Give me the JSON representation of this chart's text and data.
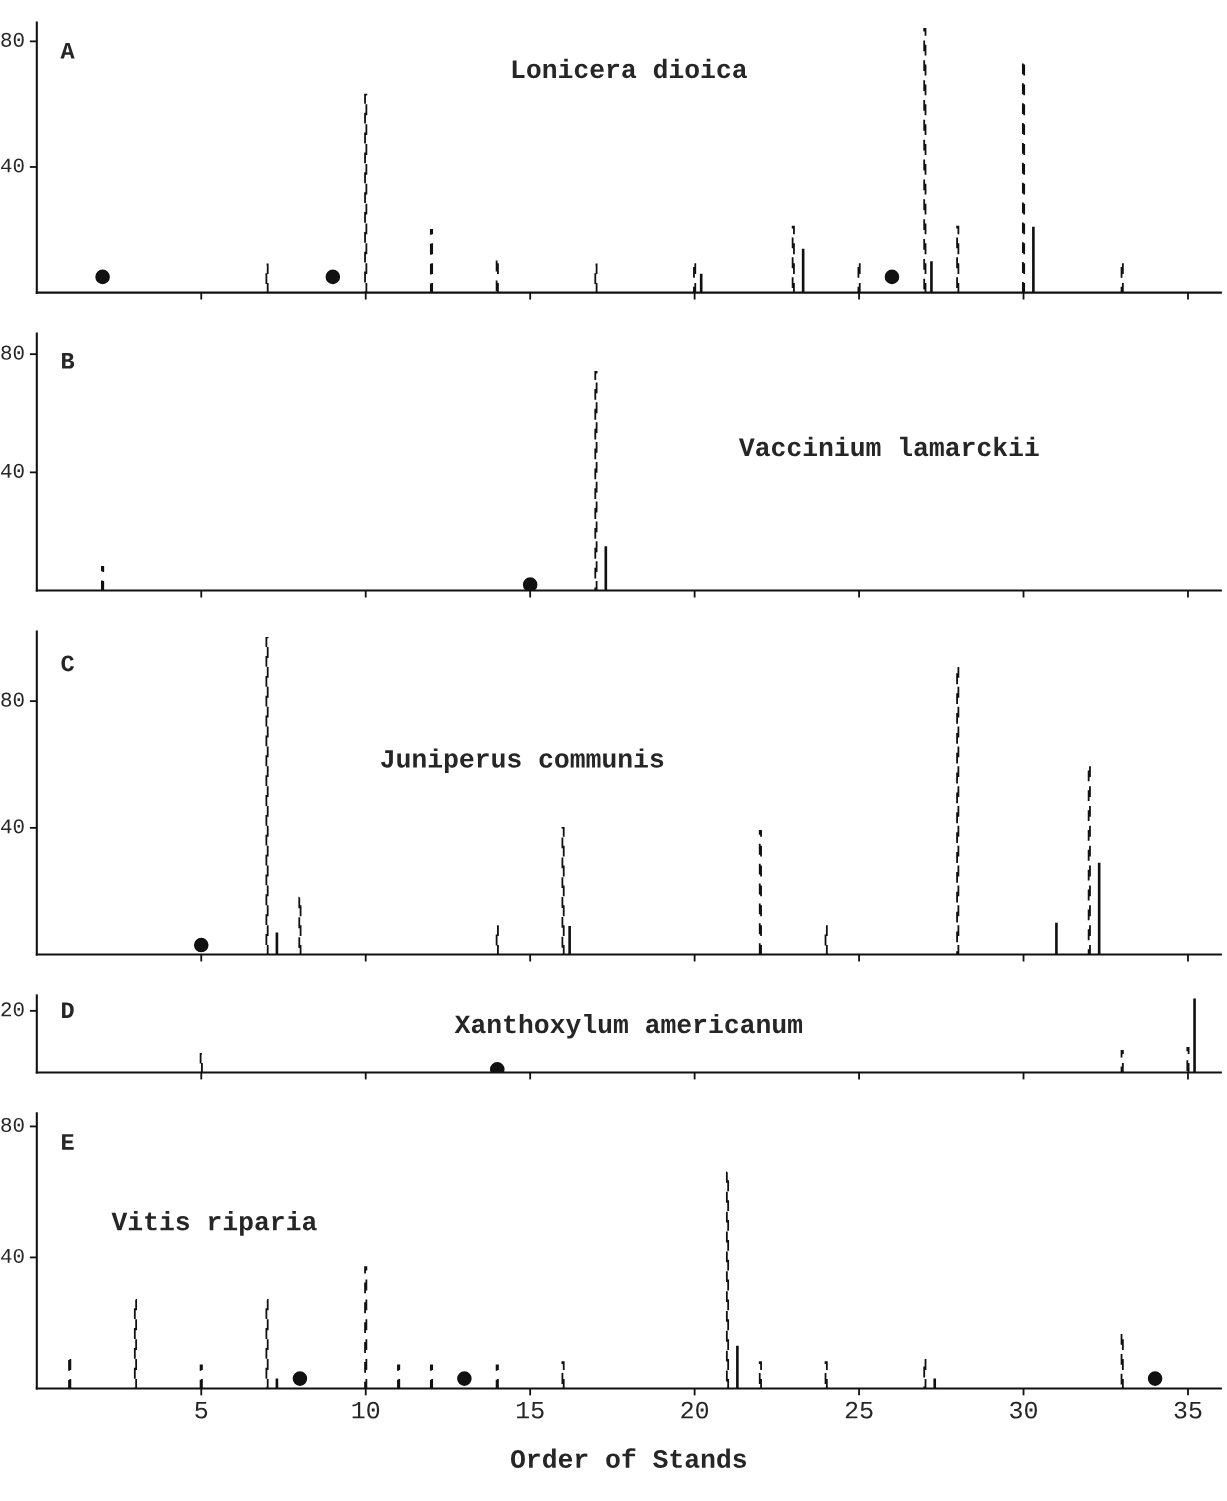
{
  "chart_data": [
    {
      "type": "bar",
      "title": "Lonicera dioica",
      "annotations": [
        "A"
      ],
      "xlim": [
        0,
        36
      ],
      "xticks": [
        {
          "value": 5,
          "label": null
        },
        {
          "value": 10,
          "label": null
        },
        {
          "value": 15,
          "label": null
        },
        {
          "value": 20,
          "label": null
        },
        {
          "value": 25,
          "label": null
        },
        {
          "value": 30,
          "label": null
        },
        {
          "value": 35,
          "label": null
        }
      ],
      "ylim": [
        0,
        86
      ],
      "yticks": [
        40,
        80
      ],
      "tick_labels": "y",
      "grid": false,
      "legend": false,
      "series": [
        {
          "line_style": "dashed",
          "color": "#111111",
          "x": [
            7,
            10,
            12,
            14,
            17,
            20,
            23,
            25,
            27,
            28,
            30,
            33
          ],
          "values": [
            9,
            63,
            20,
            11,
            9,
            10,
            21,
            10,
            84,
            21,
            74,
            10
          ]
        },
        {
          "line_style": "solid",
          "color": "#111111",
          "x": [
            20.2,
            23.3,
            27.2,
            30.3
          ],
          "values": [
            6,
            14,
            10,
            21
          ]
        },
        {
          "type": "scatter",
          "marker": "circle",
          "color": "#111111",
          "x": [
            2,
            9,
            26
          ],
          "values": [
            5,
            5,
            5
          ]
        }
      ]
    },
    {
      "type": "bar",
      "title": "Vaccinium lamarckii",
      "annotations": [
        "B"
      ],
      "xlim": [
        0,
        36
      ],
      "xticks": [
        {
          "value": 5,
          "label": null
        },
        {
          "value": 10,
          "label": null
        },
        {
          "value": 15,
          "label": null
        },
        {
          "value": 20,
          "label": null
        },
        {
          "value": 25,
          "label": null
        },
        {
          "value": 30,
          "label": null
        },
        {
          "value": 35,
          "label": null
        }
      ],
      "ylim": [
        0,
        87
      ],
      "yticks": [
        40,
        80
      ],
      "tick_labels": "y",
      "grid": false,
      "legend": false,
      "series": [
        {
          "line_style": "dashed",
          "color": "#111111",
          "x": [
            2,
            17
          ],
          "values": [
            8,
            74
          ]
        },
        {
          "line_style": "solid",
          "color": "#111111",
          "x": [
            17.3
          ],
          "values": [
            15
          ]
        },
        {
          "type": "scatter",
          "marker": "circle",
          "color": "#111111",
          "x": [
            15
          ],
          "values": [
            2
          ]
        }
      ]
    },
    {
      "type": "bar",
      "title": "Juniperus communis",
      "annotations": [
        "C"
      ],
      "xlim": [
        0,
        36
      ],
      "xticks": [
        {
          "value": 5,
          "label": null
        },
        {
          "value": 10,
          "label": null
        },
        {
          "value": 15,
          "label": null
        },
        {
          "value": 20,
          "label": null
        },
        {
          "value": 25,
          "label": null
        },
        {
          "value": 30,
          "label": null
        },
        {
          "value": 35,
          "label": null
        }
      ],
      "ylim": [
        0,
        102
      ],
      "yticks": [
        40,
        80
      ],
      "tick_labels": "y",
      "grid": false,
      "legend": false,
      "series": [
        {
          "line_style": "dashed",
          "color": "#111111",
          "x": [
            7,
            8,
            14,
            16,
            22,
            24,
            28,
            32
          ],
          "values": [
            100,
            18,
            9,
            40,
            39,
            9,
            91,
            60
          ]
        },
        {
          "line_style": "solid",
          "color": "#111111",
          "x": [
            7.3,
            16.2,
            31,
            32.3
          ],
          "values": [
            7,
            9,
            10,
            29
          ]
        },
        {
          "type": "scatter",
          "marker": "circle",
          "color": "#111111",
          "x": [
            5
          ],
          "values": [
            3
          ]
        }
      ]
    },
    {
      "type": "bar",
      "title": "Xanthoxylum americanum",
      "annotations": [
        "D"
      ],
      "xlim": [
        0,
        36
      ],
      "xticks": [
        {
          "value": 5,
          "label": null
        },
        {
          "value": 10,
          "label": null
        },
        {
          "value": 15,
          "label": null
        },
        {
          "value": 20,
          "label": null
        },
        {
          "value": 25,
          "label": null
        },
        {
          "value": 30,
          "label": null
        },
        {
          "value": 35,
          "label": null
        }
      ],
      "ylim": [
        0,
        25
      ],
      "yticks": [
        20
      ],
      "tick_labels": "y",
      "grid": false,
      "legend": false,
      "series": [
        {
          "line_style": "dashed",
          "color": "#111111",
          "x": [
            5,
            33,
            35
          ],
          "values": [
            6,
            7,
            8
          ]
        },
        {
          "line_style": "solid",
          "color": "#111111",
          "x": [
            35.2
          ],
          "values": [
            24
          ]
        },
        {
          "type": "scatter",
          "marker": "circle",
          "color": "#111111",
          "x": [
            14
          ],
          "values": [
            1
          ]
        }
      ]
    },
    {
      "type": "bar",
      "title": "Vitis riparia",
      "annotations": [
        "E"
      ],
      "xlabel": "Order of Stands",
      "xlim": [
        0,
        36
      ],
      "xticks": [
        5,
        10,
        15,
        20,
        25,
        30,
        35
      ],
      "ylim": [
        0,
        84
      ],
      "yticks": [
        40,
        80
      ],
      "grid": false,
      "legend": false,
      "series": [
        {
          "line_style": "dashed",
          "color": "#111111",
          "x": [
            1,
            3,
            5,
            7,
            10,
            11,
            12,
            14,
            16,
            21,
            22,
            24,
            27,
            33
          ],
          "values": [
            10,
            27,
            7,
            27,
            37,
            7,
            7,
            7,
            8,
            66,
            8,
            8,
            9,
            17
          ]
        },
        {
          "line_style": "solid",
          "color": "#111111",
          "x": [
            7.3,
            21.3,
            27.3
          ],
          "values": [
            3,
            13,
            3
          ]
        },
        {
          "type": "scatter",
          "marker": "circle",
          "color": "#111111",
          "x": [
            8,
            13,
            34
          ],
          "values": [
            3,
            3,
            3
          ]
        }
      ]
    }
  ]
}
